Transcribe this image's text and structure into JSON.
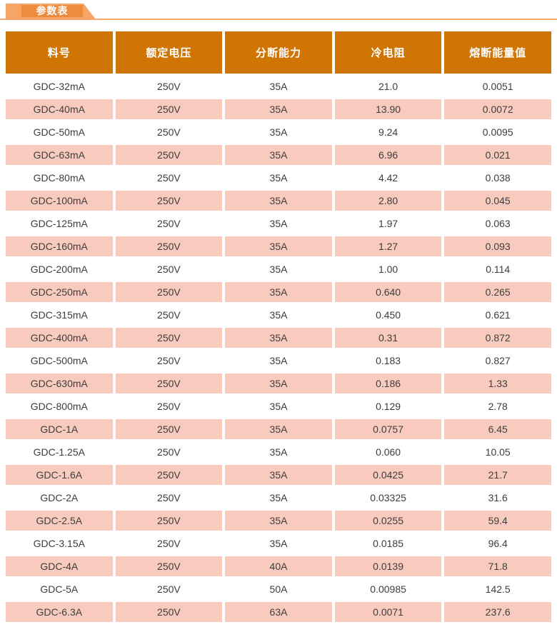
{
  "page": {
    "tab_label": "参数表"
  },
  "colors": {
    "header_bg": "#D07404",
    "row_alt_bg": "#F9CBBE",
    "tab_outer": "#F7A567",
    "tab_inner": "#ED8C3C",
    "underline": "#F5A76C",
    "row_text": "#3D3D3D",
    "header_text": "#FFFFFF"
  },
  "table": {
    "headers": [
      "料号",
      "额定电压",
      "分断能力",
      "冷电阻",
      "熔断能量值"
    ],
    "rows": [
      [
        "GDC-32mA",
        "250V",
        "35A",
        "21.0",
        "0.0051"
      ],
      [
        "GDC-40mA",
        "250V",
        "35A",
        "13.90",
        "0.0072"
      ],
      [
        "GDC-50mA",
        "250V",
        "35A",
        "9.24",
        "0.0095"
      ],
      [
        "GDC-63mA",
        "250V",
        "35A",
        "6.96",
        "0.021"
      ],
      [
        "GDC-80mA",
        "250V",
        "35A",
        "4.42",
        "0.038"
      ],
      [
        "GDC-100mA",
        "250V",
        "35A",
        "2.80",
        "0.045"
      ],
      [
        "GDC-125mA",
        "250V",
        "35A",
        "1.97",
        "0.063"
      ],
      [
        "GDC-160mA",
        "250V",
        "35A",
        "1.27",
        "0.093"
      ],
      [
        "GDC-200mA",
        "250V",
        "35A",
        "1.00",
        "0.114"
      ],
      [
        "GDC-250mA",
        "250V",
        "35A",
        "0.640",
        "0.265"
      ],
      [
        "GDC-315mA",
        "250V",
        "35A",
        "0.450",
        "0.621"
      ],
      [
        "GDC-400mA",
        "250V",
        "35A",
        "0.31",
        "0.872"
      ],
      [
        "GDC-500mA",
        "250V",
        "35A",
        "0.183",
        "0.827"
      ],
      [
        "GDC-630mA",
        "250V",
        "35A",
        "0.186",
        "1.33"
      ],
      [
        "GDC-800mA",
        "250V",
        "35A",
        "0.129",
        "2.78"
      ],
      [
        "GDC-1A",
        "250V",
        "35A",
        "0.0757",
        "6.45"
      ],
      [
        "GDC-1.25A",
        "250V",
        "35A",
        "0.060",
        "10.05"
      ],
      [
        "GDC-1.6A",
        "250V",
        "35A",
        "0.0425",
        "21.7"
      ],
      [
        "GDC-2A",
        "250V",
        "35A",
        "0.03325",
        "31.6"
      ],
      [
        "GDC-2.5A",
        "250V",
        "35A",
        "0.0255",
        "59.4"
      ],
      [
        "GDC-3.15A",
        "250V",
        "35A",
        "0.0185",
        "96.4"
      ],
      [
        "GDC-4A",
        "250V",
        "40A",
        "0.0139",
        "71.8"
      ],
      [
        "GDC-5A",
        "250V",
        "50A",
        "0.00985",
        "142.5"
      ],
      [
        "GDC-6.3A",
        "250V",
        "63A",
        "0.0071",
        "237.6"
      ]
    ]
  }
}
